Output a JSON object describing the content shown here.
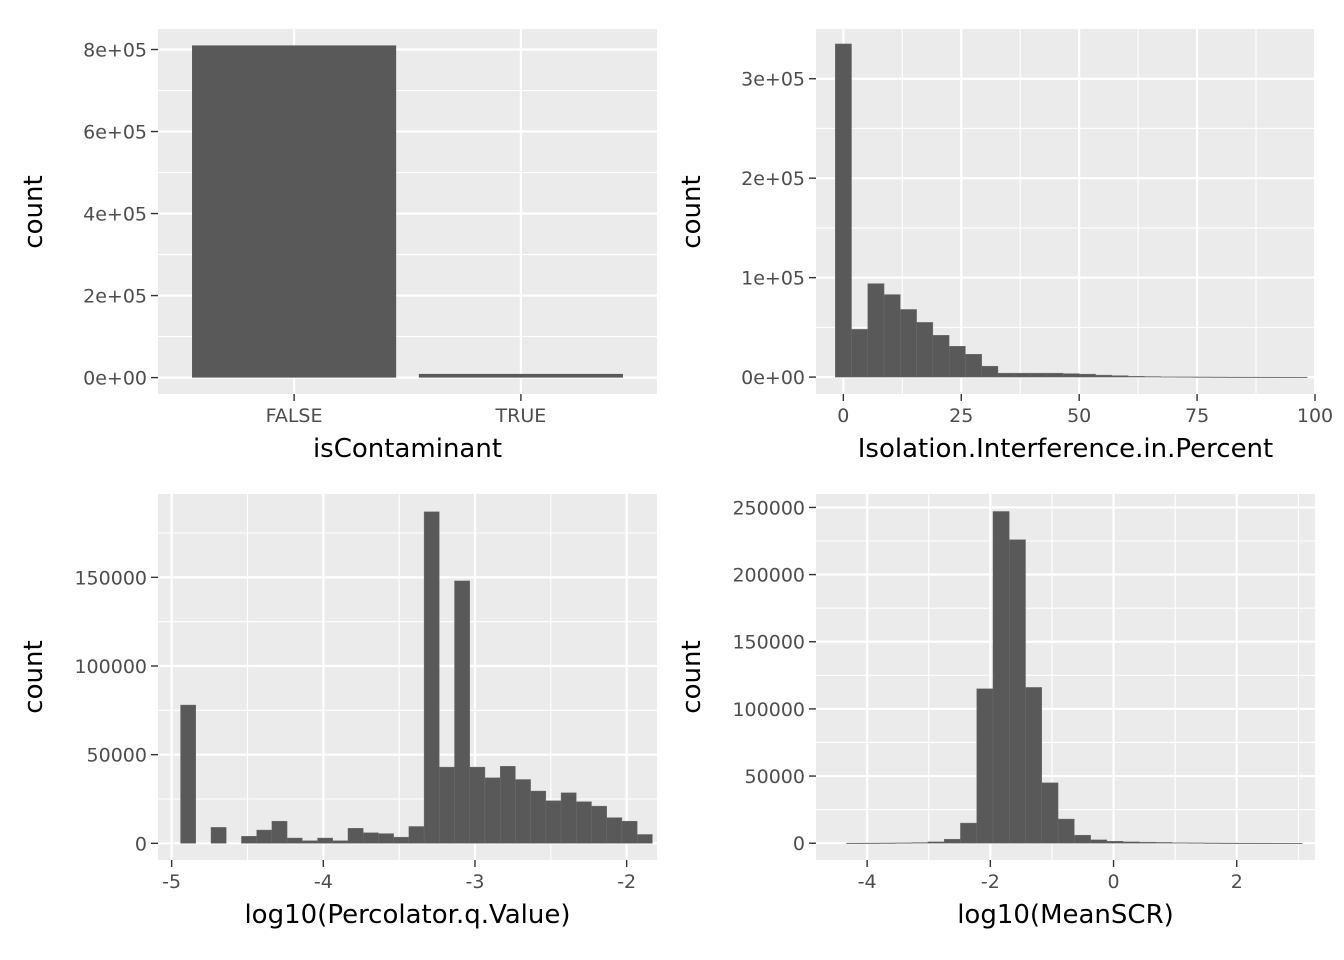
{
  "chart_data": [
    {
      "id": "p1",
      "type": "bar",
      "xlabel": "isContaminant",
      "ylabel": "count",
      "categories": [
        "FALSE",
        "TRUE"
      ],
      "values": [
        810000,
        9000
      ],
      "ylim": [
        -40000,
        850000
      ],
      "yticks": [
        0,
        200000,
        400000,
        600000,
        800000
      ],
      "ytick_labels": [
        "0e+00",
        "2e+05",
        "4e+05",
        "6e+05",
        "8e+05"
      ],
      "grid": true
    },
    {
      "id": "p2",
      "type": "bar",
      "xlabel": "Isolation.Interference.in.Percent",
      "ylabel": "count",
      "xlim": [
        -5.8,
        100
      ],
      "ylim": [
        -17000,
        350000
      ],
      "bin_start": -1.72,
      "bin_width": 3.45,
      "values": [
        335000,
        48000,
        94000,
        83000,
        68000,
        55000,
        42000,
        31000,
        23000,
        11000,
        4000,
        4000,
        4000,
        4000,
        3500,
        3000,
        2000,
        1500,
        800,
        600,
        400,
        300,
        200,
        150,
        100,
        80,
        60,
        40,
        20
      ],
      "xticks": [
        0,
        25,
        50,
        75,
        100
      ],
      "xtick_labels": [
        "0",
        "25",
        "50",
        "75",
        "100"
      ],
      "yticks": [
        0,
        100000,
        200000,
        300000
      ],
      "ytick_labels": [
        "0e+00",
        "1e+05",
        "2e+05",
        "3e+05"
      ],
      "grid": true
    },
    {
      "id": "p3",
      "type": "bar",
      "xlabel": "log10(Percolator.q.Value)",
      "ylabel": "count",
      "xlim": [
        -5.09,
        -1.8
      ],
      "ylim": [
        -9400,
        197000
      ],
      "bin_start": -4.9413,
      "bin_width": 0.10035,
      "values": [
        78000,
        0,
        9000,
        0,
        4000,
        7500,
        12500,
        3000,
        1500,
        3000,
        1500,
        8500,
        6000,
        5500,
        3500,
        9500,
        187000,
        43000,
        148000,
        43000,
        37000,
        43500,
        36000,
        29500,
        24000,
        28500,
        23500,
        21000,
        14500,
        12500,
        5000
      ],
      "xticks": [
        -5,
        -4,
        -3,
        -2
      ],
      "xtick_labels": [
        "-5",
        "-4",
        "-3",
        "-2"
      ],
      "yticks": [
        0,
        50000,
        100000,
        150000
      ],
      "ytick_labels": [
        "0",
        "50000",
        "100000",
        "150000"
      ],
      "grid": true
    },
    {
      "id": "p4",
      "type": "bar",
      "xlabel": "log10(MeanSCR)",
      "ylabel": "count",
      "xlim": [
        -4.83,
        3.27
      ],
      "ylim": [
        -12500,
        260000
      ],
      "bin_start": -4.335,
      "bin_width": 0.2642,
      "values": [
        100,
        150,
        200,
        300,
        500,
        1000,
        3000,
        15000,
        115000,
        247000,
        226000,
        116000,
        45000,
        18000,
        6000,
        2500,
        1500,
        1000,
        800,
        600,
        400,
        300,
        200,
        150,
        100,
        80,
        50,
        30
      ],
      "xticks": [
        -4,
        -2,
        0,
        2
      ],
      "xtick_labels": [
        "-4",
        "-2",
        "0",
        "2"
      ],
      "yticks": [
        0,
        50000,
        100000,
        150000,
        200000,
        250000
      ],
      "ytick_labels": [
        "0",
        "50000",
        "100000",
        "150000",
        "200000",
        "250000"
      ],
      "grid": true
    }
  ],
  "colors": {
    "panel_background": "#ebebeb",
    "grid_major": "#ffffff",
    "bar_fill": "#595959",
    "tick_text": "#4d4d4d",
    "tick_mark": "#333333",
    "title_text": "#000000"
  }
}
